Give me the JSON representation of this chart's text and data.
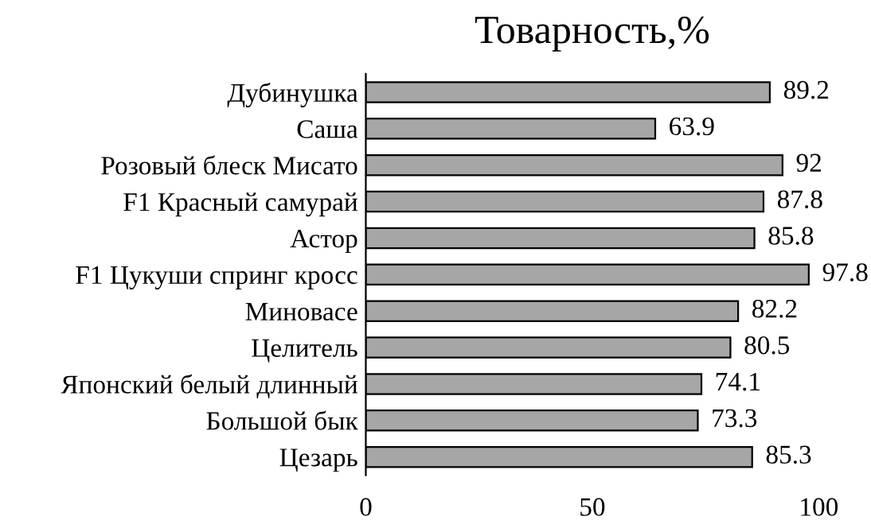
{
  "chart_data": {
    "type": "bar",
    "orientation": "horizontal",
    "title": "Товарность,%",
    "categories": [
      "Дубинушка",
      "Саша",
      "Розовый блеск Мисато",
      "F1 Красный самурай",
      "Астор",
      "F1 Цукуши спринг кросс",
      "Миновасе",
      "Целитель",
      "Японский белый длинный",
      "Большой бык",
      "Цезарь"
    ],
    "values": [
      89.2,
      63.9,
      92,
      87.8,
      85.8,
      97.8,
      82.2,
      80.5,
      74.1,
      73.3,
      85.3
    ],
    "color": "#a6a6a6",
    "xlim": [
      0,
      100
    ],
    "xticks": [
      0,
      50,
      100
    ],
    "data_labels": true,
    "grid": false,
    "legend": false
  }
}
